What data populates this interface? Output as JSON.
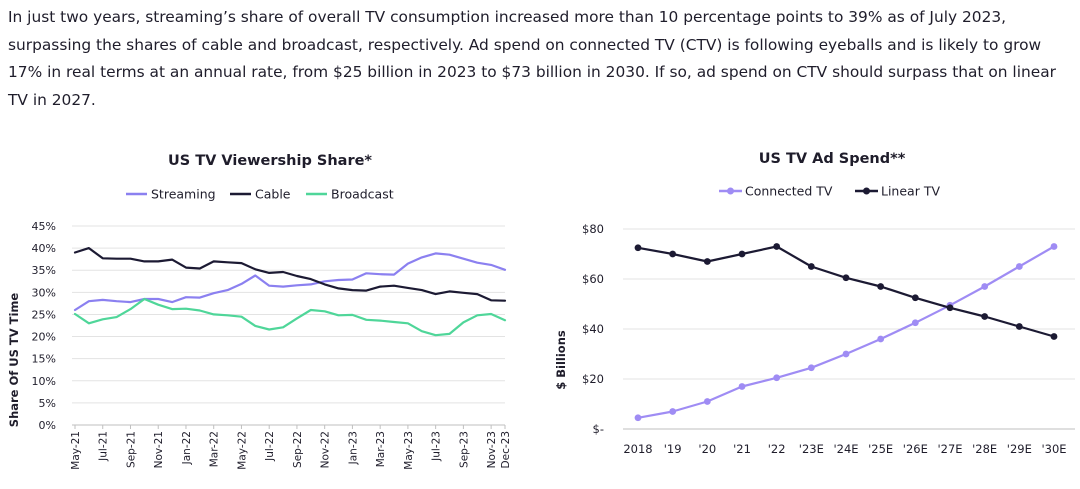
{
  "intro_text": "In just two years, streaming’s share of overall TV consumption increased more than 10 percentage points to 39% as of July 2023, surpassing the shares of cable and broadcast, respectively. Ad spend on connected TV (CTV) is following eyeballs and is likely to grow 17% in real terms at an annual rate, from $25 billion in 2023 to $73 billion in 2030. If so, ad spend on CTV should surpass that on linear TV in 2027.",
  "colors": {
    "streaming": "#8b80f0",
    "cable": "#1c1a33",
    "broadcast": "#4fd699",
    "connected": "#9f8cf4",
    "linear": "#1c1a33",
    "grid": "#e3e3e3",
    "axis": "#bfbfbf"
  },
  "chart_data": [
    {
      "type": "line",
      "title": "US TV Viewership Share*",
      "xlabel": "",
      "ylabel": "Share Of US TV Time",
      "ylim": [
        0,
        45
      ],
      "ytick_values": [
        0,
        5,
        10,
        15,
        20,
        25,
        30,
        35,
        40,
        45
      ],
      "ytick_labels": [
        "0%",
        "5%",
        "10%",
        "15%",
        "20%",
        "25%",
        "30%",
        "35%",
        "40%",
        "45%"
      ],
      "x": [
        "May-21",
        "Jun-21",
        "Jul-21",
        "Aug-21",
        "Sep-21",
        "Oct-21",
        "Nov-21",
        "Dec-21",
        "Jan-22",
        "Feb-22",
        "Mar-22",
        "Apr-22",
        "May-22",
        "Jun-22",
        "Jul-22",
        "Aug-22",
        "Sep-22",
        "Oct-22",
        "Nov-22",
        "Dec-22",
        "Jan-23",
        "Feb-23",
        "Mar-23",
        "Apr-23",
        "May-23",
        "Jun-23",
        "Jul-23",
        "Aug-23",
        "Sep-23",
        "Oct-23",
        "Nov-23",
        "Dec-23"
      ],
      "xtick_labels": [
        "May-21",
        "Jul-21",
        "Sep-21",
        "Nov-21",
        "Jan-22",
        "Mar-22",
        "May-22",
        "Jul-22",
        "Sep-22",
        "Nov-22",
        "Jan-23",
        "Mar-23",
        "May-23",
        "Jul-23",
        "Sep-23",
        "Nov-23",
        "Dec-23"
      ],
      "xtick_index": [
        0,
        2,
        4,
        6,
        8,
        10,
        12,
        14,
        16,
        18,
        20,
        22,
        24,
        26,
        28,
        30,
        31
      ],
      "legend_position": "top",
      "series": [
        {
          "name": "Streaming",
          "color_key": "streaming",
          "values": [
            26,
            28,
            28.3,
            28,
            27.8,
            28.5,
            28.5,
            27.8,
            28.9,
            28.8,
            29.8,
            30.5,
            31.9,
            33.8,
            31.5,
            31.3,
            31.6,
            31.8,
            32.5,
            32.8,
            32.9,
            34.3,
            34.1,
            34,
            36.5,
            37.9,
            38.8,
            38.5,
            37.6,
            36.7,
            36.2,
            35.1
          ]
        },
        {
          "name": "Cable",
          "color_key": "cable",
          "values": [
            39,
            40,
            37.7,
            37.6,
            37.6,
            37,
            37,
            37.4,
            35.6,
            35.4,
            37,
            36.8,
            36.6,
            35.2,
            34.4,
            34.6,
            33.7,
            33,
            31.8,
            30.9,
            30.5,
            30.4,
            31.3,
            31.5,
            31,
            30.5,
            29.6,
            30.2,
            29.9,
            29.6,
            28.2,
            28.1
          ]
        },
        {
          "name": "Broadcast",
          "color_key": "broadcast",
          "values": [
            25.1,
            23,
            23.9,
            24.4,
            26.2,
            28.5,
            27.2,
            26.2,
            26.3,
            25.9,
            25,
            24.8,
            24.5,
            22.4,
            21.6,
            22.1,
            24.1,
            26,
            25.7,
            24.8,
            24.9,
            23.8,
            23.6,
            23.3,
            23,
            21.2,
            20.3,
            20.6,
            23.2,
            24.8,
            25.1,
            23.7
          ]
        }
      ]
    },
    {
      "type": "line",
      "title": "US TV Ad Spend**",
      "xlabel": "",
      "ylabel": "$ Billions",
      "ylim": [
        0,
        80
      ],
      "ytick_values": [
        0,
        20,
        40,
        60,
        80
      ],
      "ytick_labels": [
        "$-",
        "$20",
        "$40",
        "$60",
        "$80"
      ],
      "categories": [
        "2018",
        "'19",
        "'20",
        "'21",
        "'22",
        "'23E",
        "'24E",
        "'25E",
        "'26E",
        "'27E",
        "'28E",
        "'29E",
        "'30E"
      ],
      "legend_position": "top",
      "markers": true,
      "series": [
        {
          "name": "Connected TV",
          "color_key": "connected",
          "values": [
            4.5,
            7,
            11,
            17,
            20.5,
            24.5,
            30,
            36,
            42.5,
            49.5,
            57,
            65,
            73
          ]
        },
        {
          "name": "Linear TV",
          "color_key": "linear",
          "values": [
            72.5,
            70,
            67,
            70,
            73,
            65,
            60.5,
            57,
            52.5,
            48.5,
            45,
            41,
            37
          ]
        }
      ]
    }
  ]
}
